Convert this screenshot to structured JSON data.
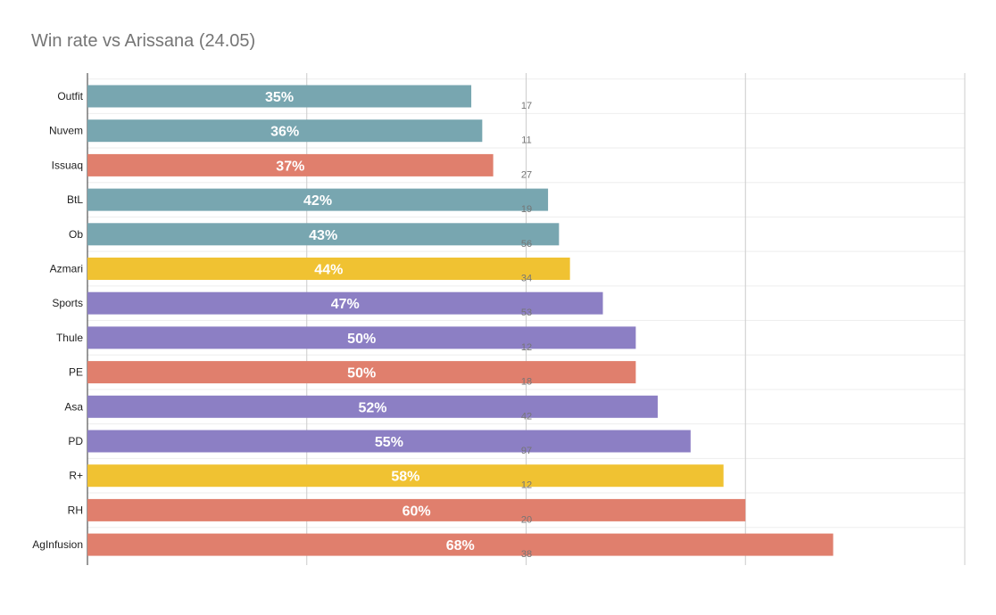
{
  "chart_data": {
    "type": "bar",
    "orientation": "horizontal",
    "title": "Win rate vs Arissana (24.05)",
    "xlabel": "",
    "ylabel": "",
    "xlim": [
      0,
      0.8
    ],
    "grid": true,
    "categories": [
      "Outfit",
      "Nuvem",
      "Issuaq",
      "BtL",
      "Ob",
      "Azmari",
      "Sports",
      "Thule",
      "PE",
      "Asa",
      "PD",
      "R+",
      "RH",
      "AgInfusion"
    ],
    "values": [
      0.35,
      0.36,
      0.37,
      0.42,
      0.43,
      0.44,
      0.47,
      0.5,
      0.5,
      0.52,
      0.55,
      0.58,
      0.6,
      0.68
    ],
    "value_labels": [
      "35%",
      "36%",
      "37%",
      "42%",
      "43%",
      "44%",
      "47%",
      "50%",
      "50%",
      "52%",
      "55%",
      "58%",
      "60%",
      "68%"
    ],
    "counts": [
      "17",
      "11",
      "27",
      "19",
      "56",
      "34",
      "53",
      "12",
      "18",
      "42",
      "97",
      "12",
      "20",
      "38"
    ],
    "colors": [
      "#78a6b0",
      "#78a6b0",
      "#e07f6d",
      "#78a6b0",
      "#78a6b0",
      "#f0c232",
      "#8c7fc4",
      "#8c7fc4",
      "#e07f6d",
      "#8c7fc4",
      "#8c7fc4",
      "#f0c232",
      "#e07f6d",
      "#e07f6d"
    ]
  }
}
